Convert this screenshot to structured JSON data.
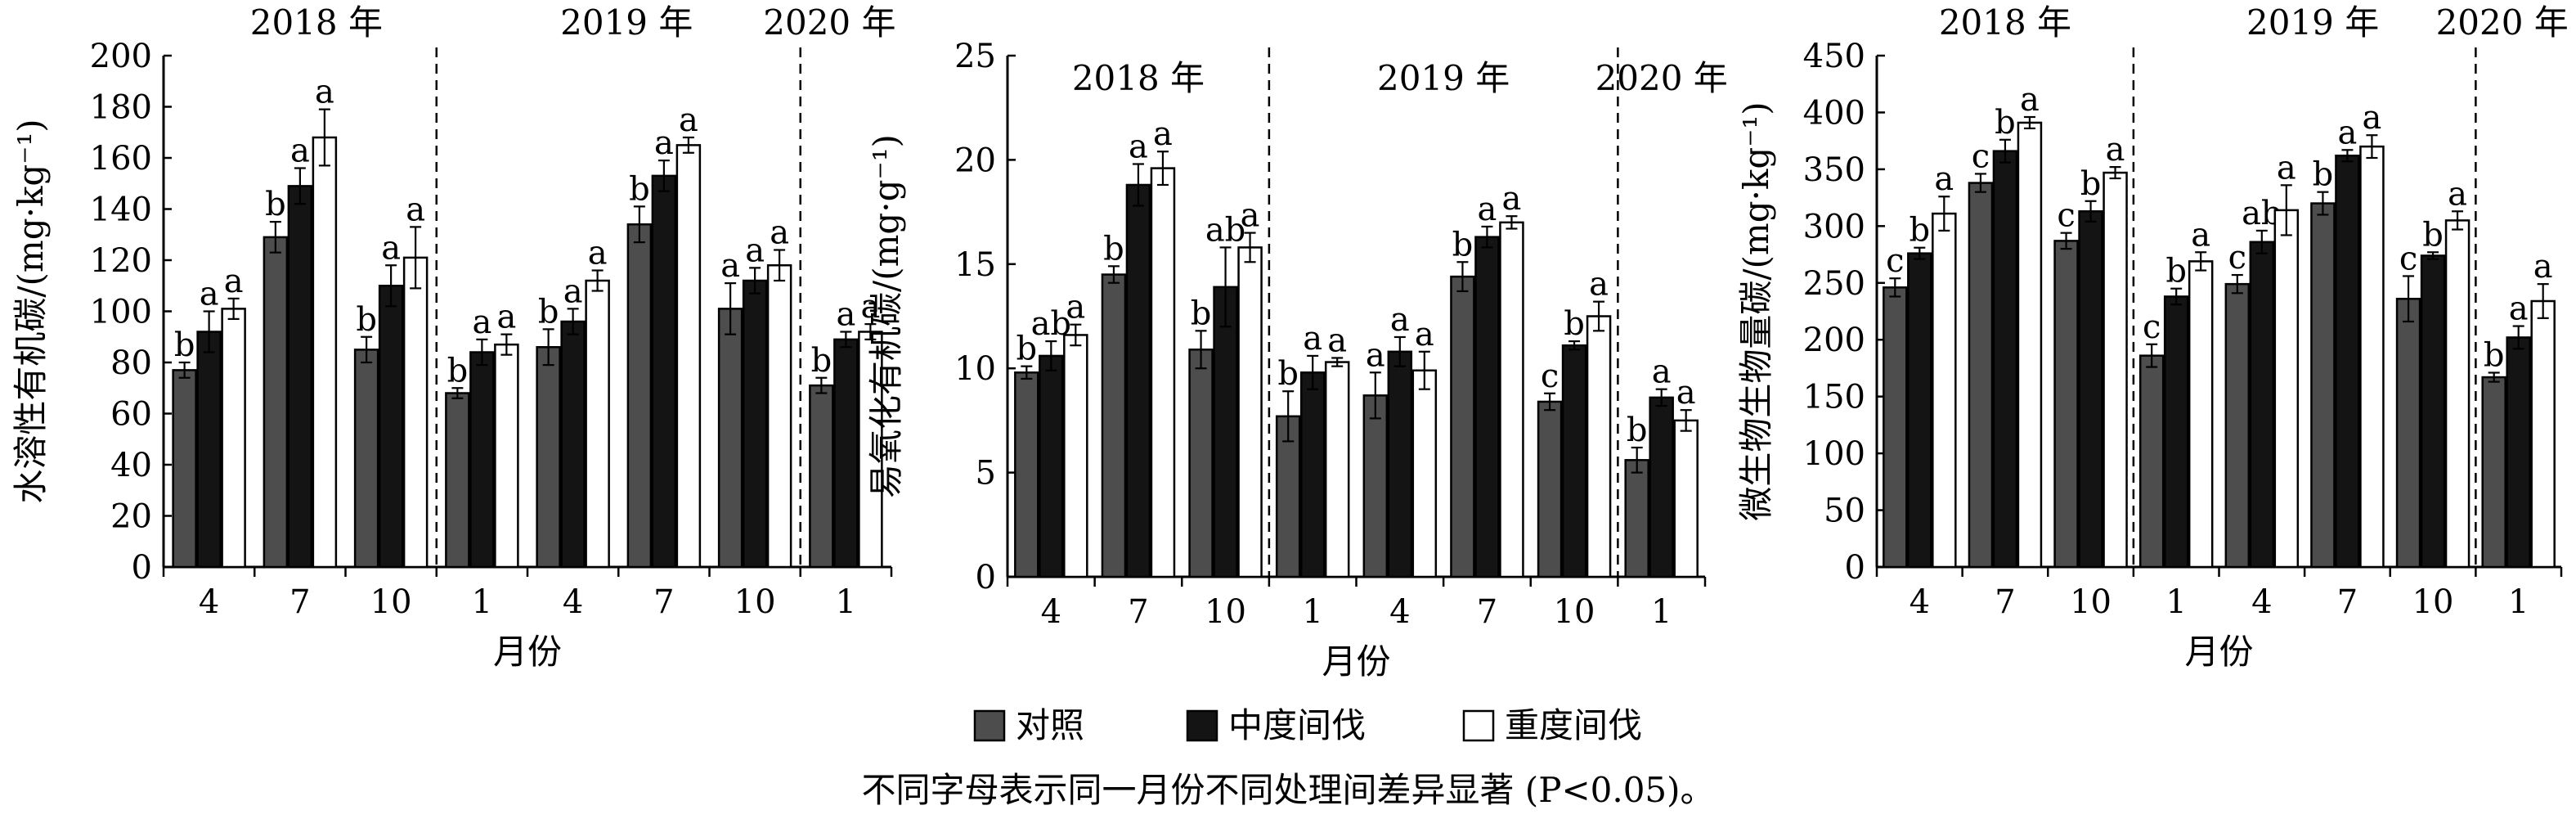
{
  "colors": {
    "ck": "#4d4d4d",
    "moderate": "#141414",
    "heavy": "#ffffff"
  },
  "legend": [
    "对照",
    "中度间伐",
    "重度间伐"
  ],
  "footnote": "不同字母表示同一月份不同处理间差异显著 (P<0.05)。",
  "chart_data": [
    {
      "type": "bar",
      "ylabel": "水溶性有机碳/(mg·kg⁻¹)",
      "xlabel": "月份",
      "ylim": [
        0,
        200
      ],
      "yticks": [
        0,
        20,
        40,
        60,
        80,
        100,
        120,
        140,
        160,
        180,
        200
      ],
      "categories": [
        "4",
        "7",
        "10",
        "1",
        "4",
        "7",
        "10",
        "1"
      ],
      "years": [
        {
          "label": "2018 年",
          "from": 0,
          "to": 2
        },
        {
          "label": "2019 年",
          "from": 3,
          "to": 6
        },
        {
          "label": "2020 年",
          "from": 7,
          "to": 7
        }
      ],
      "series": [
        {
          "name": "对照",
          "values": [
            77,
            129,
            85,
            68,
            86,
            134,
            101,
            71
          ],
          "errors": [
            3,
            6,
            5,
            2,
            7,
            7,
            10,
            3
          ],
          "letters": [
            "b",
            "b",
            "b",
            "b",
            "b",
            "b",
            "a",
            "b"
          ]
        },
        {
          "name": "中度间伐",
          "values": [
            92,
            149,
            110,
            84,
            96,
            153,
            112,
            89
          ],
          "errors": [
            8,
            7,
            8,
            5,
            5,
            6,
            5,
            3
          ],
          "letters": [
            "a",
            "a",
            "a",
            "a",
            "a",
            "a",
            "a",
            "a"
          ]
        },
        {
          "name": "重度间伐",
          "values": [
            101,
            168,
            121,
            87,
            112,
            165,
            118,
            92
          ],
          "errors": [
            4,
            11,
            12,
            4,
            4,
            3,
            6,
            3
          ],
          "letters": [
            "a",
            "a",
            "a",
            "a",
            "a",
            "a",
            "a",
            "a"
          ]
        }
      ]
    },
    {
      "type": "bar",
      "ylabel": "易氧化有机碳/(mg·g⁻¹)",
      "xlabel": "月份",
      "ylim": [
        0,
        25
      ],
      "yticks": [
        0,
        5,
        10,
        15,
        20,
        25
      ],
      "categories": [
        "4",
        "7",
        "10",
        "1",
        "4",
        "7",
        "10",
        "1"
      ],
      "years": [
        {
          "label": "2018 年",
          "from": 0,
          "to": 2
        },
        {
          "label": "2019 年",
          "from": 3,
          "to": 6
        },
        {
          "label": "2020 年",
          "from": 7,
          "to": 7
        }
      ],
      "series": [
        {
          "name": "对照",
          "values": [
            9.8,
            14.5,
            10.9,
            7.7,
            8.7,
            14.4,
            8.4,
            5.6
          ],
          "errors": [
            0.3,
            0.4,
            0.9,
            1.2,
            1.1,
            0.7,
            0.4,
            0.6
          ],
          "letters": [
            "b",
            "b",
            "b",
            "b",
            "a",
            "b",
            "c",
            "b"
          ]
        },
        {
          "name": "中度间伐",
          "values": [
            10.6,
            18.8,
            13.9,
            9.8,
            10.8,
            16.3,
            11.1,
            8.6
          ],
          "errors": [
            0.7,
            1.0,
            1.9,
            0.8,
            0.7,
            0.5,
            0.2,
            0.4
          ],
          "letters": [
            "ab",
            "a",
            "ab",
            "a",
            "a",
            "a",
            "b",
            "a"
          ]
        },
        {
          "name": "重度间伐",
          "values": [
            11.6,
            19.6,
            15.8,
            10.3,
            9.9,
            17.0,
            12.5,
            7.5
          ],
          "errors": [
            0.5,
            0.8,
            0.7,
            0.2,
            0.9,
            0.3,
            0.7,
            0.5
          ],
          "letters": [
            "a",
            "a",
            "a",
            "a",
            "a",
            "a",
            "a",
            "a"
          ]
        }
      ]
    },
    {
      "type": "bar",
      "ylabel": "微生物生物量碳/(mg·kg⁻¹)",
      "xlabel": "月份",
      "ylim": [
        0,
        450
      ],
      "yticks": [
        0,
        50,
        100,
        150,
        200,
        250,
        300,
        350,
        400,
        450
      ],
      "categories": [
        "4",
        "7",
        "10",
        "1",
        "4",
        "7",
        "10",
        "1"
      ],
      "years": [
        {
          "label": "2018 年",
          "from": 0,
          "to": 2
        },
        {
          "label": "2019 年",
          "from": 3,
          "to": 6
        },
        {
          "label": "2020 年",
          "from": 7,
          "to": 7
        }
      ],
      "series": [
        {
          "name": "对照",
          "values": [
            246,
            338,
            287,
            186,
            249,
            320,
            236,
            167
          ],
          "errors": [
            8,
            8,
            7,
            10,
            8,
            10,
            20,
            4
          ],
          "letters": [
            "c",
            "c",
            "c",
            "c",
            "c",
            "b",
            "c",
            "b"
          ]
        },
        {
          "name": "中度间伐",
          "values": [
            276,
            366,
            313,
            238,
            286,
            362,
            274,
            202
          ],
          "errors": [
            5,
            10,
            9,
            7,
            10,
            5,
            3,
            10
          ],
          "letters": [
            "b",
            "b",
            "b",
            "b",
            "ab",
            "a",
            "b",
            "a"
          ]
        },
        {
          "name": "重度间伐",
          "values": [
            311,
            391,
            347,
            269,
            314,
            370,
            305,
            234
          ],
          "errors": [
            15,
            5,
            5,
            8,
            22,
            10,
            8,
            15
          ],
          "letters": [
            "a",
            "a",
            "a",
            "a",
            "a",
            "a",
            "a",
            "a"
          ]
        }
      ]
    }
  ]
}
